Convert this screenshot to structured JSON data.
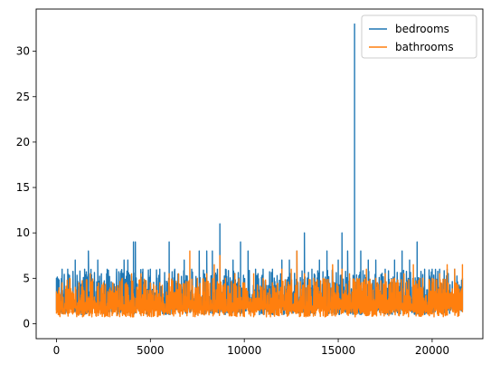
{
  "chart_data": {
    "type": "line",
    "title": "",
    "xlabel": "",
    "ylabel": "",
    "xlim": [
      -1080,
      22700
    ],
    "ylim": [
      -1.65,
      34.65
    ],
    "xticks": [
      0,
      5000,
      10000,
      15000,
      20000
    ],
    "xtick_labels": [
      "0",
      "5000",
      "10000",
      "15000",
      "20000"
    ],
    "yticks": [
      0,
      5,
      10,
      15,
      20,
      25,
      30
    ],
    "ytick_labels": [
      "0",
      "5",
      "10",
      "15",
      "20",
      "25",
      "30"
    ],
    "grid": false,
    "legend": "top-right",
    "series": [
      {
        "name": "bedrooms",
        "color": "#1f77b4",
        "x": [
          0,
          300,
          600,
          1000,
          1500,
          1700,
          2200,
          2700,
          3200,
          3600,
          3800,
          4100,
          4200,
          4600,
          5000,
          5500,
          6000,
          6300,
          6800,
          7200,
          7600,
          8000,
          8300,
          8700,
          9000,
          9400,
          9800,
          10200,
          10600,
          11000,
          11500,
          12000,
          12400,
          12800,
          13200,
          13600,
          14000,
          14400,
          14700,
          15000,
          15200,
          15500,
          15870,
          16200,
          16600,
          17000,
          17500,
          18000,
          18400,
          18800,
          19200,
          19600,
          20000,
          20400,
          20800,
          21200,
          21613
        ],
        "y": [
          5,
          6,
          6,
          7,
          6,
          8,
          7,
          6,
          6,
          7,
          7,
          9,
          9,
          6,
          6,
          6,
          9,
          6,
          7,
          6,
          8,
          8,
          8,
          11,
          6,
          7,
          9,
          8,
          6,
          6,
          6,
          7,
          7,
          8,
          10,
          6,
          7,
          8,
          6,
          7,
          10,
          8,
          33,
          8,
          7,
          7,
          6,
          7,
          8,
          7,
          9,
          6,
          6,
          6,
          6,
          6,
          5
        ],
        "y_low": 1
      },
      {
        "name": "bathrooms",
        "color": "#ff7f0e",
        "x": [
          0,
          300,
          700,
          1200,
          1800,
          2500,
          3000,
          3500,
          4000,
          4500,
          5000,
          5500,
          6000,
          6500,
          7100,
          7500,
          8000,
          8400,
          8700,
          9000,
          9500,
          10000,
          10500,
          11000,
          11500,
          12000,
          12500,
          12800,
          13200,
          13700,
          14200,
          14700,
          15200,
          15600,
          16000,
          16500,
          17000,
          17500,
          18000,
          18500,
          19000,
          19500,
          20000,
          20400,
          20800,
          21200,
          21613
        ],
        "y": [
          3.5,
          4.5,
          5,
          4.5,
          5.5,
          4.5,
          4.5,
          5,
          5.5,
          5.5,
          4.5,
          4.5,
          5.5,
          5.5,
          8,
          5,
          5.5,
          6.5,
          7.5,
          5,
          5.5,
          4.5,
          5.5,
          5,
          4.5,
          6,
          6,
          8,
          5.5,
          5,
          5,
          6.5,
          6,
          5.5,
          5,
          6,
          5,
          5.5,
          5,
          5.5,
          6.5,
          5,
          5,
          5.5,
          6.5,
          6,
          6.5
        ],
        "y_low": 0.75
      }
    ]
  }
}
